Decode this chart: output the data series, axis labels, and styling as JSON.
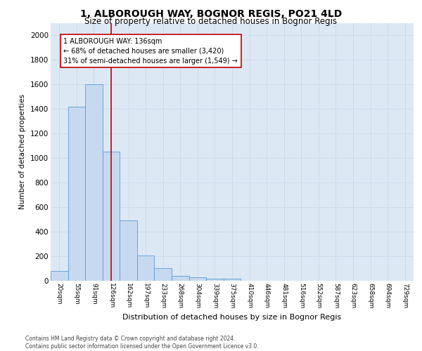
{
  "title": "1, ALBOROUGH WAY, BOGNOR REGIS, PO21 4LD",
  "subtitle": "Size of property relative to detached houses in Bognor Regis",
  "xlabel": "Distribution of detached houses by size in Bognor Regis",
  "ylabel": "Number of detached properties",
  "footnote1": "Contains HM Land Registry data © Crown copyright and database right 2024.",
  "footnote2": "Contains public sector information licensed under the Open Government Licence v3.0.",
  "annotation_line1": "1 ALBOROUGH WAY: 136sqm",
  "annotation_line2": "← 68% of detached houses are smaller (3,420)",
  "annotation_line3": "31% of semi-detached houses are larger (1,549) →",
  "bar_labels": [
    "20sqm",
    "55sqm",
    "91sqm",
    "126sqm",
    "162sqm",
    "197sqm",
    "233sqm",
    "268sqm",
    "304sqm",
    "339sqm",
    "375sqm",
    "410sqm",
    "446sqm",
    "481sqm",
    "516sqm",
    "552sqm",
    "587sqm",
    "623sqm",
    "658sqm",
    "694sqm",
    "729sqm"
  ],
  "bar_values": [
    80,
    1420,
    1600,
    1050,
    490,
    205,
    105,
    40,
    28,
    20,
    16,
    0,
    0,
    0,
    0,
    0,
    0,
    0,
    0,
    0,
    0
  ],
  "bar_color": "#c6d9f0",
  "bar_edge_color": "#5b9bd5",
  "grid_color": "#d0d8e8",
  "background_color": "#dde8f5",
  "marker_color": "#c00000",
  "ylim": [
    0,
    2100
  ],
  "yticks": [
    0,
    200,
    400,
    600,
    800,
    1000,
    1200,
    1400,
    1600,
    1800,
    2000
  ]
}
